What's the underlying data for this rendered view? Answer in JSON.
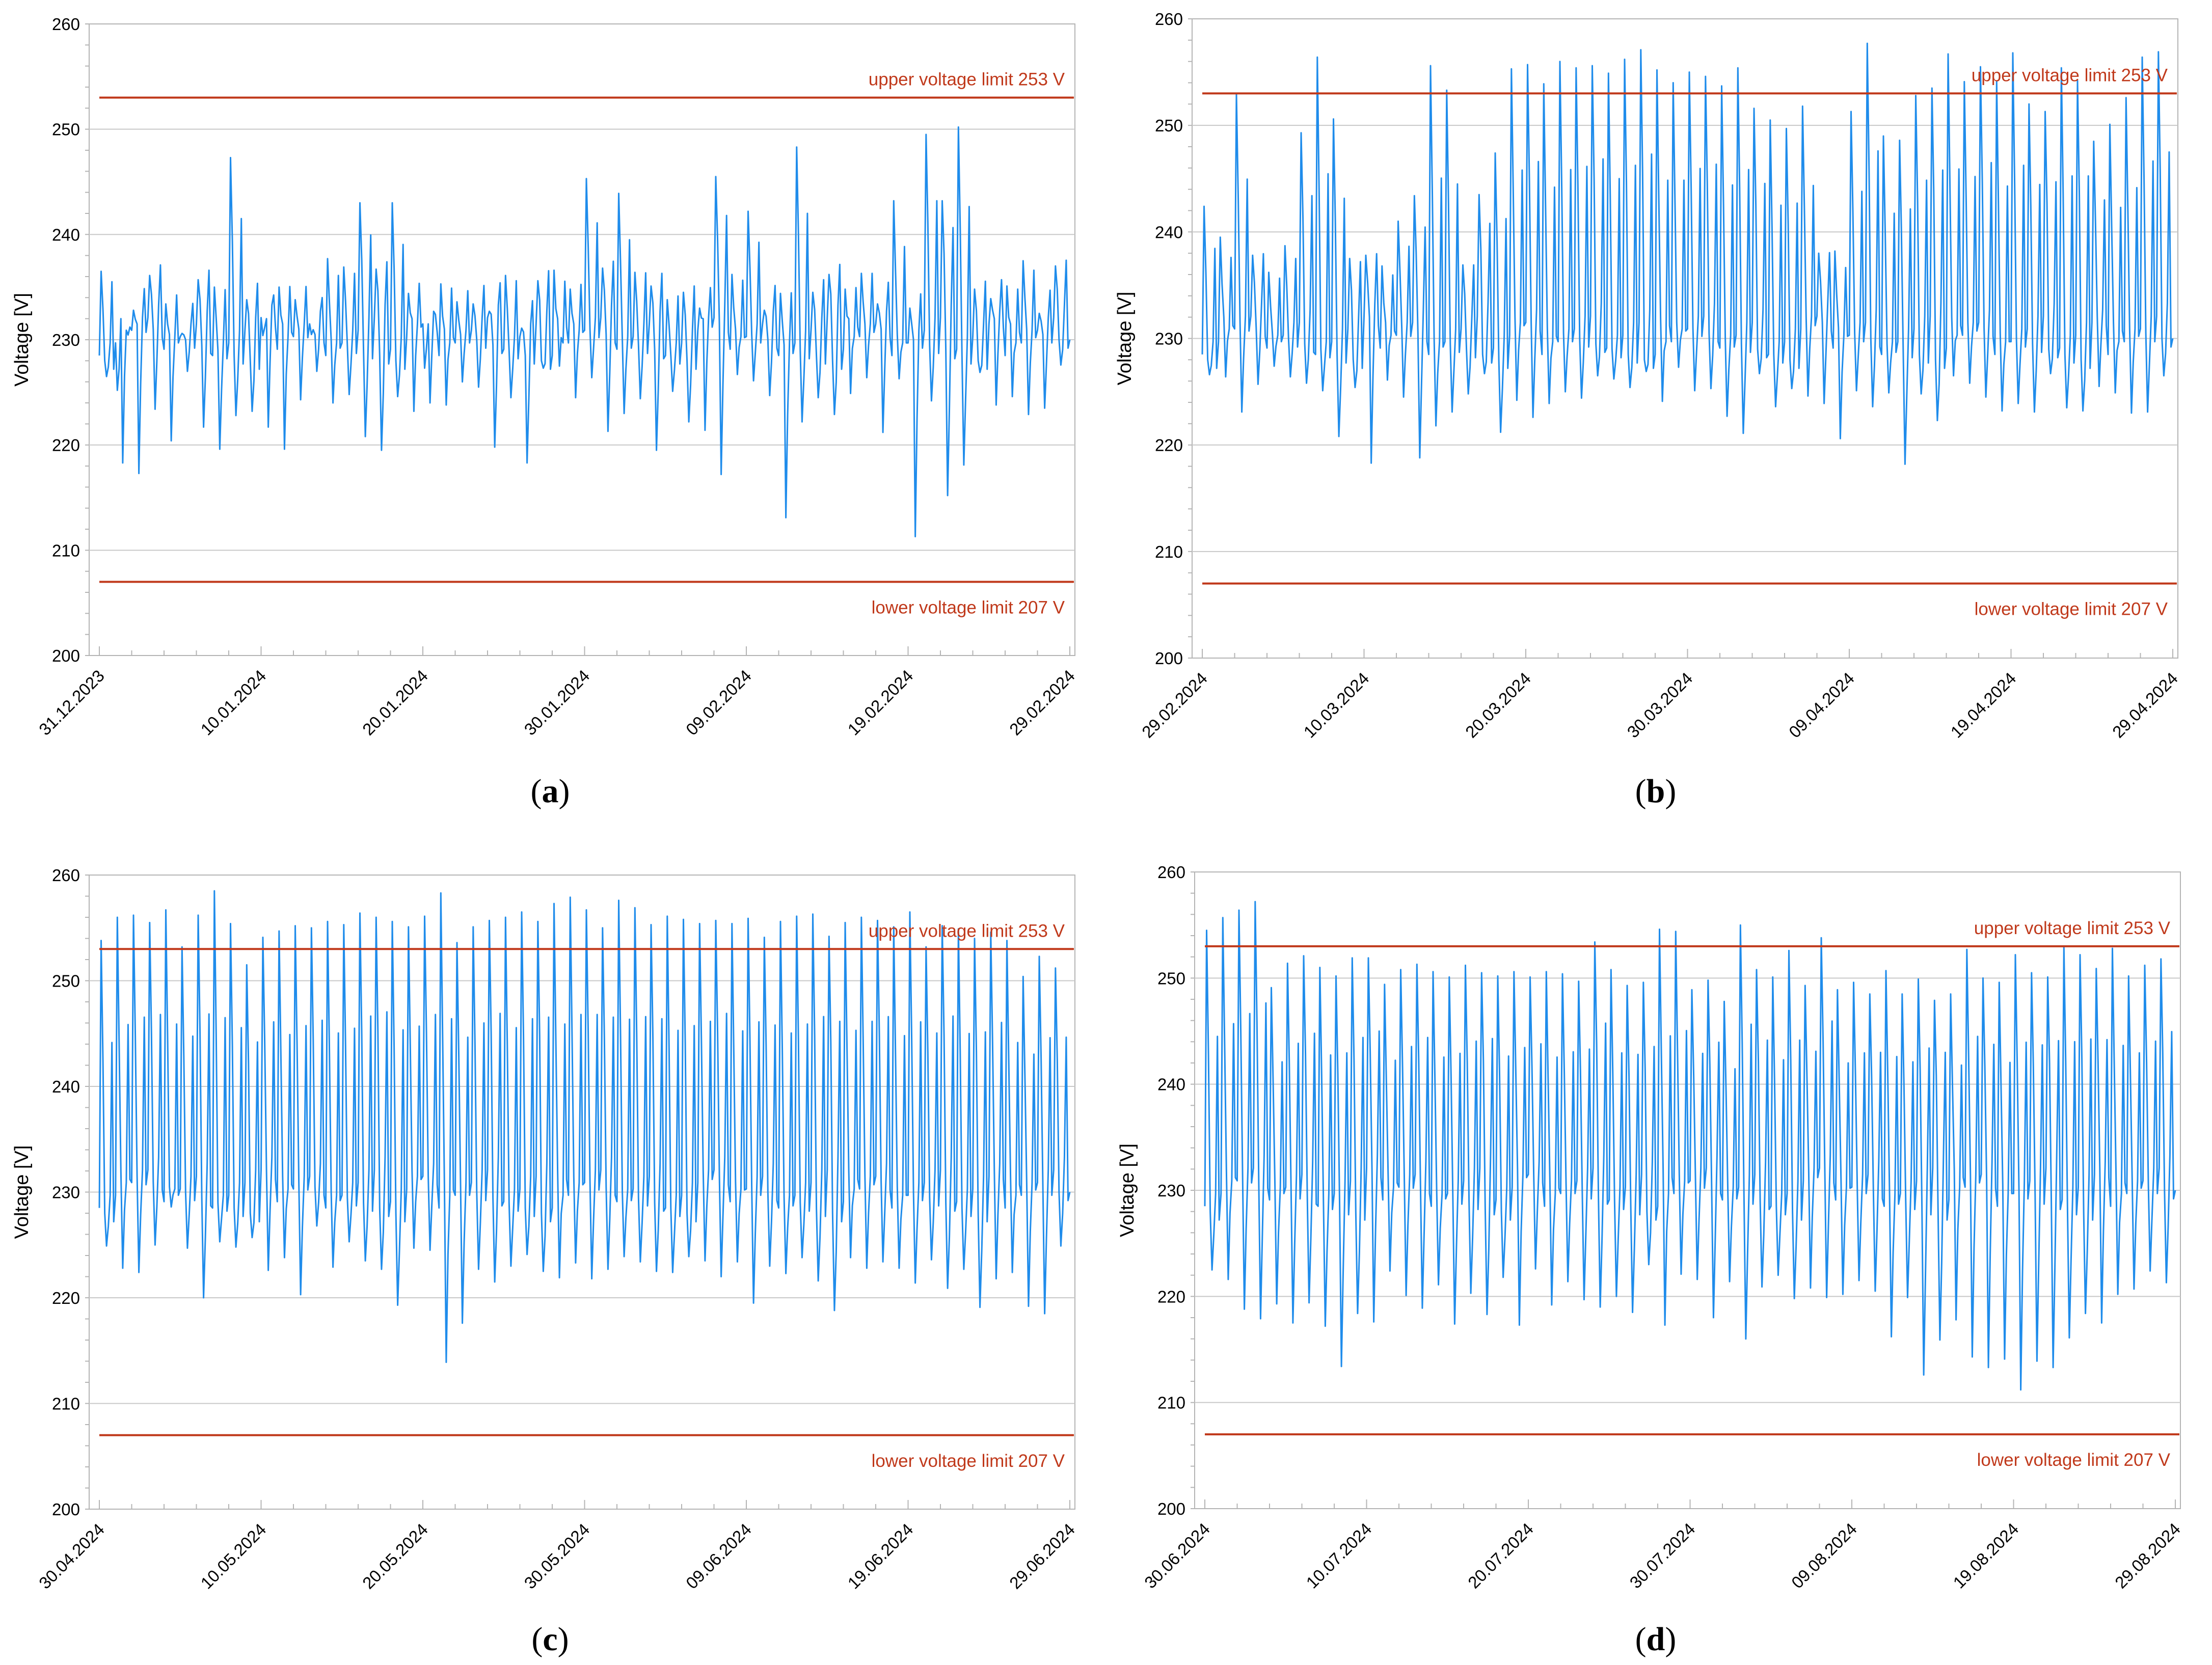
{
  "figure": {
    "colors": {
      "series": "#1f8ceb",
      "limit": "#c0391b",
      "grid": "#c8c8c8",
      "frame": "#b4b4b4",
      "background": "#ffffff"
    }
  },
  "chart_data": [
    {
      "panel": "a",
      "caption_letter": "a",
      "type": "line",
      "title": "",
      "xlabel": "",
      "ylabel": "Voltage [V]",
      "ylim": [
        200,
        260
      ],
      "yticks": [
        200,
        210,
        220,
        230,
        240,
        250,
        260
      ],
      "grid": true,
      "date_range": [
        "31.12.2023",
        "29.02.2024"
      ],
      "day_count": 60,
      "xtick_labels": [
        "31.12.2023",
        "10.01.2024",
        "20.01.2024",
        "30.01.2024",
        "09.02.2024",
        "19.02.2024",
        "29.02.2024"
      ],
      "upper_limit": {
        "value": 253,
        "label": "upper voltage limit 253 V"
      },
      "lower_limit": {
        "value": 207,
        "label": "lower voltage limit 207 V"
      },
      "series": [
        {
          "name": "Voltage",
          "samples_per_day": 4,
          "daily_max": [
            236.5,
            225.2,
            232.8,
            236.1,
            233.4,
            230.6,
            235.7,
            235.0,
            247.3,
            233.8,
            230.4,
            235.0,
            233.8,
            230.5,
            237.7,
            236.9,
            243.0,
            236.7,
            243.0,
            234.4,
            227.3,
            235.3,
            233.6,
            233.4,
            232.7,
            236.1,
            231.1,
            235.6,
            236.6,
            234.8,
            245.3,
            236.8,
            243.9,
            236.4,
            235.1,
            233.8,
            234.5,
            233.0,
            245.5,
            236.2,
            242.2,
            232.8,
            234.4,
            248.3,
            234.5,
            236.2,
            234.8,
            236.3,
            233.4,
            243.2,
            233.0,
            249.5,
            243.2,
            250.2,
            234.8,
            233.9,
            235.1,
            237.5,
            232.5,
            237.0
          ],
          "daily_min": [
            226.5,
            218.3,
            217.3,
            223.4,
            220.4,
            227.0,
            221.7,
            219.6,
            222.8,
            223.2,
            221.7,
            219.6,
            224.3,
            227.0,
            224.0,
            224.8,
            220.8,
            219.5,
            224.6,
            223.2,
            224.0,
            223.8,
            226.0,
            225.5,
            219.8,
            224.5,
            218.3,
            227.3,
            227.5,
            224.5,
            226.4,
            221.3,
            223.0,
            224.4,
            219.5,
            225.1,
            222.2,
            221.4,
            217.2,
            226.7,
            226.1,
            224.7,
            213.1,
            222.2,
            224.5,
            222.9,
            224.9,
            226.4,
            221.2,
            226.3,
            211.3,
            224.2,
            215.2,
            218.1,
            226.9,
            223.8,
            224.6,
            222.9,
            223.5,
            227.6
          ]
        }
      ]
    },
    {
      "panel": "b",
      "caption_letter": "b",
      "type": "line",
      "title": "",
      "xlabel": "",
      "ylabel": "Voltage [V]",
      "ylim": [
        200,
        260
      ],
      "yticks": [
        200,
        210,
        220,
        230,
        240,
        250,
        260
      ],
      "grid": true,
      "date_range": [
        "29.02.2024",
        "29.04.2024"
      ],
      "day_count": 60,
      "xtick_labels": [
        "29.02.2024",
        "10.03.2024",
        "20.03.2024",
        "30.03.2024",
        "09.04.2024",
        "19.04.2024",
        "29.04.2024"
      ],
      "upper_limit": {
        "value": 253,
        "label": "upper voltage limit 253 V"
      },
      "lower_limit": {
        "value": 207,
        "label": "lower voltage limit 207 V"
      },
      "series": [
        {
          "name": "Voltage",
          "samples_per_day": 4,
          "daily_max": [
            242.4,
            239.5,
            253.0,
            237.8,
            236.2,
            238.7,
            249.3,
            256.4,
            250.6,
            237.5,
            237.8,
            236.8,
            241.0,
            243.4,
            255.6,
            253.3,
            236.9,
            243.5,
            247.4,
            255.3,
            255.7,
            253.9,
            256.0,
            255.4,
            255.6,
            254.9,
            256.2,
            257.1,
            255.2,
            254.0,
            255.0,
            254.6,
            253.7,
            255.4,
            251.6,
            250.5,
            249.7,
            251.8,
            238.0,
            238.2,
            251.3,
            257.7,
            249.0,
            248.6,
            252.8,
            253.5,
            256.7,
            254.1,
            255.5,
            254.1,
            256.8,
            252.0,
            251.3,
            255.4,
            254.2,
            248.5,
            250.1,
            252.6,
            256.4,
            256.9
          ],
          "daily_min": [
            226.6,
            226.4,
            223.1,
            225.7,
            227.4,
            226.4,
            225.8,
            225.1,
            220.8,
            225.4,
            218.3,
            226.1,
            224.5,
            218.8,
            221.8,
            223.1,
            224.8,
            226.7,
            221.2,
            224.2,
            222.6,
            223.9,
            225.0,
            224.4,
            226.5,
            226.2,
            225.4,
            226.9,
            224.1,
            227.3,
            225.1,
            225.3,
            222.7,
            221.1,
            226.7,
            223.6,
            225.3,
            224.6,
            223.9,
            220.6,
            225.1,
            223.6,
            224.9,
            218.2,
            224.8,
            222.3,
            226.5,
            225.8,
            224.5,
            223.2,
            223.9,
            223.1,
            226.7,
            223.5,
            223.2,
            225.5,
            224.9,
            223.0,
            223.1,
            226.5
          ]
        }
      ]
    },
    {
      "panel": "c",
      "caption_letter": "c",
      "type": "line",
      "title": "",
      "xlabel": "",
      "ylabel": "Voltage [V]",
      "ylim": [
        200,
        260
      ],
      "yticks": [
        200,
        210,
        220,
        230,
        240,
        250,
        260
      ],
      "grid": true,
      "date_range": [
        "30.04.2024",
        "29.06.2024"
      ],
      "day_count": 60,
      "xtick_labels": [
        "30.04.2024",
        "10.05.2024",
        "20.05.2024",
        "30.05.2024",
        "09.06.2024",
        "19.06.2024",
        "29.06.2024"
      ],
      "upper_limit": {
        "value": 253,
        "label": "upper voltage limit 253 V"
      },
      "lower_limit": {
        "value": 207,
        "label": "lower voltage limit 207 V"
      },
      "series": [
        {
          "name": "Voltage",
          "samples_per_day": 4,
          "daily_max": [
            253.8,
            256.0,
            256.2,
            255.5,
            256.7,
            253.2,
            256.2,
            258.5,
            255.4,
            251.5,
            254.1,
            254.7,
            255.2,
            255.0,
            255.6,
            255.3,
            256.4,
            256.0,
            255.6,
            255.1,
            256.1,
            258.3,
            253.6,
            255.1,
            255.7,
            256.0,
            256.5,
            255.6,
            257.3,
            257.9,
            256.7,
            255.0,
            257.6,
            256.9,
            255.3,
            256.1,
            255.8,
            255.4,
            255.7,
            255.4,
            255.9,
            254.1,
            255.6,
            256.1,
            256.3,
            254.2,
            255.5,
            256.0,
            255.7,
            255.1,
            256.5,
            253.2,
            255.2,
            254.9,
            254.0,
            254.6,
            253.8,
            250.4,
            252.3,
            251.2
          ],
          "daily_min": [
            224.9,
            222.8,
            222.4,
            225.0,
            228.6,
            224.7,
            220.0,
            225.3,
            224.8,
            225.7,
            222.6,
            223.8,
            220.3,
            226.8,
            222.9,
            225.3,
            223.5,
            222.7,
            219.3,
            224.7,
            224.5,
            213.9,
            217.6,
            222.7,
            221.5,
            223.0,
            224.1,
            222.5,
            221.9,
            223.3,
            221.8,
            222.7,
            223.9,
            223.4,
            222.5,
            222.4,
            223.9,
            223.5,
            222.0,
            223.4,
            219.5,
            223.0,
            222.3,
            223.8,
            221.6,
            218.8,
            223.8,
            222.8,
            223.4,
            222.8,
            221.4,
            223.6,
            220.9,
            222.7,
            219.1,
            221.8,
            222.4,
            219.2,
            218.5,
            224.9
          ]
        }
      ]
    },
    {
      "panel": "d",
      "caption_letter": "d",
      "type": "line",
      "title": "",
      "xlabel": "",
      "ylabel": "Voltage [V]",
      "ylim": [
        200,
        260
      ],
      "yticks": [
        200,
        210,
        220,
        230,
        240,
        250,
        260
      ],
      "grid": true,
      "date_range": [
        "30.06.2024",
        "29.08.2024"
      ],
      "day_count": 60,
      "xtick_labels": [
        "30.06.2024",
        "10.07.2024",
        "20.07.2024",
        "30.07.2024",
        "09.08.2024",
        "19.08.2024",
        "29.08.2024"
      ],
      "upper_limit": {
        "value": 253,
        "label": "upper voltage limit 253 V"
      },
      "lower_limit": {
        "value": 207,
        "label": "lower voltage limit 207 V"
      },
      "series": [
        {
          "name": "Voltage",
          "samples_per_day": 4,
          "daily_max": [
            254.5,
            255.7,
            256.4,
            257.2,
            249.1,
            251.4,
            252.1,
            251.0,
            250.2,
            251.9,
            251.9,
            249.4,
            250.8,
            251.3,
            250.6,
            250.1,
            251.2,
            250.5,
            250.2,
            250.6,
            250.1,
            250.6,
            250.4,
            249.7,
            253.4,
            250.8,
            249.3,
            249.6,
            254.6,
            254.4,
            248.9,
            249.8,
            247.8,
            255.0,
            250.8,
            250.1,
            252.6,
            249.3,
            253.8,
            248.9,
            249.6,
            248.5,
            250.7,
            248.5,
            249.9,
            247.9,
            248.5,
            252.7,
            250.0,
            249.6,
            252.2,
            250.5,
            250.1,
            252.9,
            252.2,
            250.9,
            252.8,
            250.2,
            251.2,
            251.8
          ],
          "daily_min": [
            222.5,
            221.6,
            218.8,
            217.9,
            219.3,
            217.5,
            219.4,
            217.2,
            213.4,
            218.4,
            217.6,
            222.4,
            220.1,
            218.9,
            221.1,
            217.4,
            220.3,
            218.3,
            221.8,
            217.3,
            222.6,
            219.2,
            221.4,
            219.7,
            219.0,
            220.0,
            218.5,
            223.0,
            217.3,
            222.1,
            221.6,
            218.0,
            221.4,
            216.0,
            220.9,
            222.0,
            219.8,
            220.8,
            219.9,
            220.2,
            221.5,
            220.5,
            216.2,
            219.9,
            212.6,
            215.9,
            217.8,
            214.3,
            213.3,
            214.1,
            211.2,
            213.9,
            213.3,
            216.1,
            218.4,
            217.5,
            220.2,
            220.7,
            222.4,
            221.3
          ]
        }
      ]
    }
  ]
}
